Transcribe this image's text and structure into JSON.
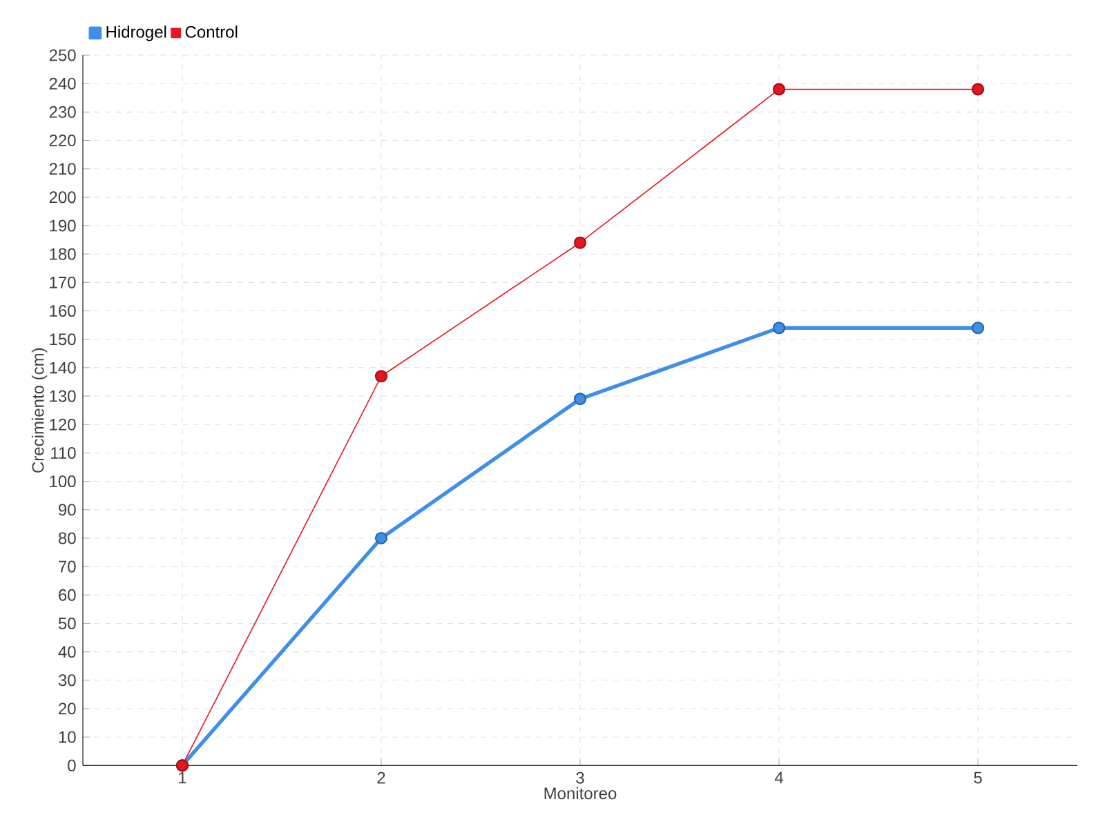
{
  "chart_data": {
    "type": "line",
    "xlabel": "Monitoreo",
    "ylabel": "Crecimiento (cm)",
    "x": [
      1,
      2,
      3,
      4,
      5
    ],
    "xlim": [
      0.5,
      5.5
    ],
    "xticks": [
      1,
      2,
      3,
      4,
      5
    ],
    "ylim": [
      0,
      250
    ],
    "yticks": [
      0,
      10,
      20,
      30,
      40,
      50,
      60,
      70,
      80,
      90,
      100,
      110,
      120,
      130,
      140,
      150,
      160,
      170,
      180,
      190,
      200,
      210,
      220,
      230,
      240,
      250
    ],
    "series": [
      {
        "name": "Hidrogel",
        "color": "#3d8fe8",
        "values": [
          0,
          80,
          129,
          154,
          154
        ]
      },
      {
        "name": "Control",
        "color": "#e8141e",
        "values": [
          0,
          137,
          184,
          238,
          238
        ]
      }
    ],
    "grid": true,
    "legend": "top left",
    "marker": "circle",
    "line_style": "solid"
  }
}
